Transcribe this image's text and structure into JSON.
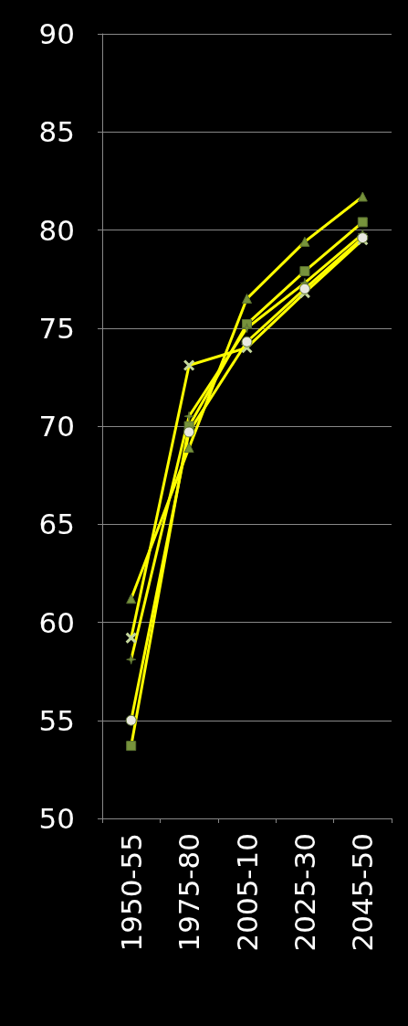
{
  "chart_data": {
    "type": "line",
    "categories": [
      "1950-55",
      "1975-80",
      "2005-10",
      "2025-30",
      "2045-50"
    ],
    "series": [
      {
        "color": "#ffff00",
        "marker": "triangle",
        "values": [
          61.2,
          68.9,
          76.5,
          79.4,
          81.7
        ]
      },
      {
        "color": "#ffff00",
        "marker": "square",
        "values": [
          53.7,
          70.0,
          75.2,
          77.9,
          80.4
        ]
      },
      {
        "color": "#ffff00",
        "marker": "cross",
        "values": [
          59.2,
          73.1,
          74.0,
          76.8,
          79.5
        ]
      },
      {
        "color": "#ffff00",
        "marker": "star",
        "values": [
          58.1,
          70.5,
          75.0,
          77.3,
          79.8
        ]
      },
      {
        "color": "#ffff00",
        "marker": "circle",
        "values": [
          55.0,
          69.7,
          74.3,
          77.0,
          79.6
        ]
      }
    ],
    "ylim": [
      50,
      90
    ],
    "yticks": [
      50,
      55,
      60,
      65,
      70,
      75,
      80,
      85,
      90
    ],
    "grid": "y",
    "line_style": "solid"
  }
}
